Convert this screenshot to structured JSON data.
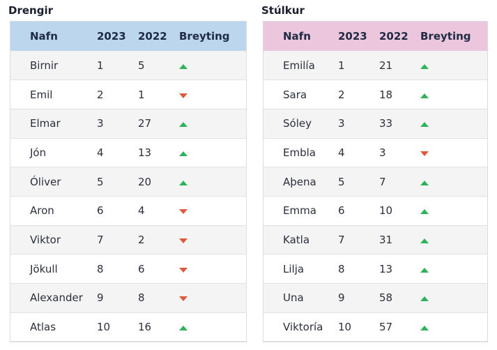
{
  "boys": {
    "title": "Drengir",
    "headers": [
      "Nafn",
      "2023",
      "2022",
      "Breyting"
    ],
    "rows": [
      {
        "name": "Birnir",
        "y2023": "1",
        "y2022": "5",
        "change": "up"
      },
      {
        "name": "Emil",
        "y2023": "2",
        "y2022": "1",
        "change": "down"
      },
      {
        "name": "Elmar",
        "y2023": "3",
        "y2022": "27",
        "change": "up"
      },
      {
        "name": "Jón",
        "y2023": "4",
        "y2022": "13",
        "change": "up"
      },
      {
        "name": "Óliver",
        "y2023": "5",
        "y2022": "20",
        "change": "up"
      },
      {
        "name": "Aron",
        "y2023": "6",
        "y2022": "4",
        "change": "down"
      },
      {
        "name": "Viktor",
        "y2023": "7",
        "y2022": "2",
        "change": "down"
      },
      {
        "name": "Jökull",
        "y2023": "8",
        "y2022": "6",
        "change": "down"
      },
      {
        "name": "Alexander",
        "y2023": "9",
        "y2022": "8",
        "change": "down"
      },
      {
        "name": "Atlas",
        "y2023": "10",
        "y2022": "16",
        "change": "up"
      }
    ]
  },
  "girls": {
    "title": "Stúlkur",
    "headers": [
      "Nafn",
      "2023",
      "2022",
      "Breyting"
    ],
    "rows": [
      {
        "name": "Emilía",
        "y2023": "1",
        "y2022": "21",
        "change": "up"
      },
      {
        "name": "Sara",
        "y2023": "2",
        "y2022": "18",
        "change": "up"
      },
      {
        "name": "Sóley",
        "y2023": "3",
        "y2022": "33",
        "change": "up"
      },
      {
        "name": "Embla",
        "y2023": "4",
        "y2022": "3",
        "change": "down"
      },
      {
        "name": "Aþena",
        "y2023": "5",
        "y2022": "7",
        "change": "up"
      },
      {
        "name": "Emma",
        "y2023": "6",
        "y2022": "10",
        "change": "up"
      },
      {
        "name": "Katla",
        "y2023": "7",
        "y2022": "31",
        "change": "up"
      },
      {
        "name": "Lilja",
        "y2023": "8",
        "y2022": "13",
        "change": "up"
      },
      {
        "name": "Una",
        "y2023": "9",
        "y2022": "58",
        "change": "up"
      },
      {
        "name": "Viktoría",
        "y2023": "10",
        "y2022": "57",
        "change": "up"
      }
    ]
  },
  "icons": {
    "up": "triangle-up-icon",
    "down": "triangle-down-icon"
  },
  "colors": {
    "up": "#2fb25b",
    "down": "#de5a3c",
    "boys_header": "#bcd6ee",
    "girls_header": "#ecc6dc"
  }
}
